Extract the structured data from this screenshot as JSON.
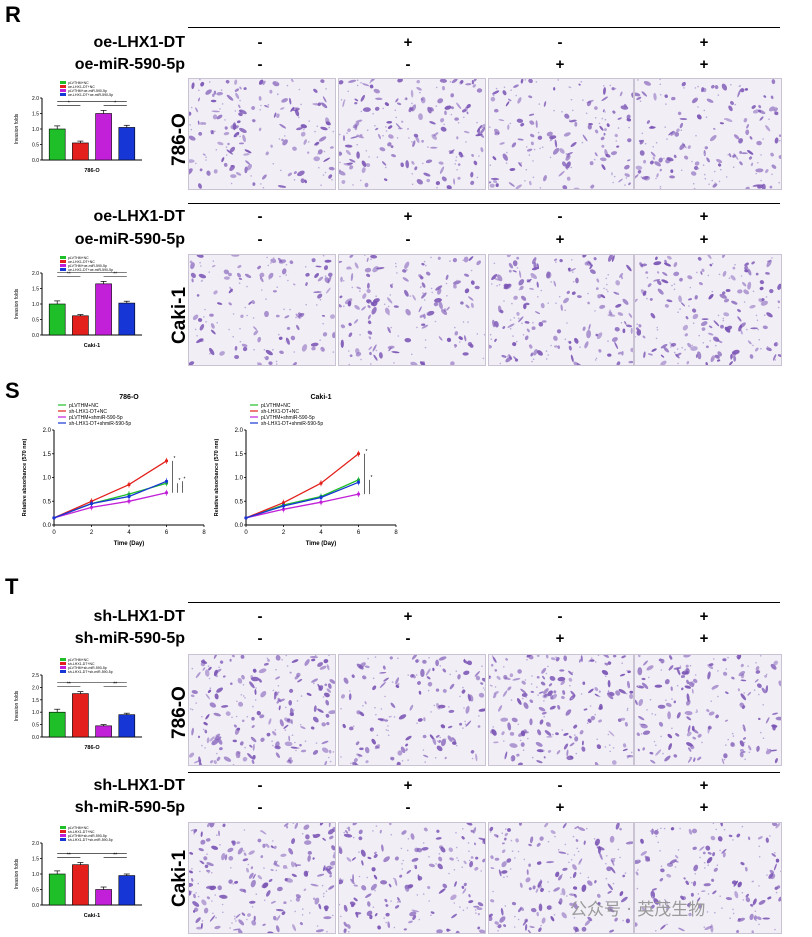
{
  "panels": {
    "R": {
      "letter": "R",
      "rows": [
        {
          "treat1": "oe-LHX1-DT",
          "treat2": "oe-miR-590-5p",
          "signs1": [
            "-",
            "+",
            "-",
            "+"
          ],
          "signs2": [
            "-",
            "-",
            "+",
            "+"
          ],
          "cell_line": "786-O"
        },
        {
          "treat1": "oe-LHX1-DT",
          "treat2": "oe-miR-590-5p",
          "signs1": [
            "-",
            "+",
            "-",
            "+"
          ],
          "signs2": [
            "-",
            "-",
            "+",
            "+"
          ],
          "cell_line": "Caki-1"
        }
      ]
    },
    "S": {
      "letter": "S"
    },
    "T": {
      "letter": "T",
      "rows": [
        {
          "treat1": "sh-LHX1-DT",
          "treat2": "sh-miR-590-5p",
          "signs1": [
            "-",
            "+",
            "-",
            "+"
          ],
          "signs2": [
            "-",
            "-",
            "+",
            "+"
          ],
          "cell_line": "786-O"
        },
        {
          "treat1": "sh-LHX1-DT",
          "treat2": "sh-miR-590-5p",
          "signs1": [
            "-",
            "+",
            "-",
            "+"
          ],
          "signs2": [
            "-",
            "-",
            "+",
            "+"
          ],
          "cell_line": "Caki-1"
        }
      ]
    }
  },
  "watermark": "公众号 · 英茂生物",
  "colors": {
    "green": "#1fbf2a",
    "red": "#e3201b",
    "magenta": "#c21fd8",
    "blue": "#1636d6",
    "stain": "#7a54b4"
  },
  "chart_data": [
    {
      "id": "R1",
      "type": "bar",
      "categories": [
        "pLVTHM+NC",
        "oe-LHX1-DT+NC",
        "pLVTHM+oe-miR-590-5p",
        "oe-LHX1-DT+oe-miR-590-5p"
      ],
      "values": [
        1.0,
        0.55,
        1.5,
        1.05
      ],
      "errors": [
        0.1,
        0.06,
        0.1,
        0.07
      ],
      "ylabel": "Invasion folds",
      "xlabel": "786-O",
      "ylim": [
        0,
        2.0
      ],
      "yticks": [
        "0.0",
        "0.5",
        "1.0",
        "1.5",
        "2.0"
      ],
      "sig": [
        "*",
        "*"
      ]
    },
    {
      "id": "R2",
      "type": "bar",
      "categories": [
        "pLVTHM+NC",
        "oe-LHX1-DT+NC",
        "pLVTHM+oe-miR-590-5p",
        "oe-LHX1-DT+oe-miR-590-5p"
      ],
      "values": [
        1.0,
        0.62,
        1.65,
        1.03
      ],
      "errors": [
        0.1,
        0.04,
        0.08,
        0.06
      ],
      "ylabel": "Invasion folds",
      "xlabel": "Caki-1",
      "ylim": [
        0,
        2.0
      ],
      "yticks": [
        "0.0",
        "0.5",
        "1.0",
        "1.5",
        "2.0"
      ],
      "sig": [
        "**",
        "**"
      ]
    },
    {
      "id": "S1",
      "type": "line",
      "title": "786-O",
      "x": [
        0,
        2,
        4,
        6
      ],
      "xticks": [
        "0",
        "2",
        "4",
        "6",
        "8"
      ],
      "xlim": [
        0,
        8
      ],
      "ylim": [
        0,
        2.0
      ],
      "yticks": [
        "0.0",
        "0.5",
        "1.0",
        "1.5",
        "2.0"
      ],
      "xlabel": "Time (Day)",
      "ylabel": "Relative absorbance (570 nm)",
      "series": [
        {
          "name": "pLVTHM+NC",
          "values": [
            0.15,
            0.45,
            0.65,
            0.88
          ]
        },
        {
          "name": "sh-LHX1-DT+NC",
          "values": [
            0.15,
            0.5,
            0.85,
            1.35
          ]
        },
        {
          "name": "pLVTHM+shmiR-590-5p",
          "values": [
            0.15,
            0.37,
            0.5,
            0.68
          ]
        },
        {
          "name": "sh-LHX1-DT+shmiR-590-5p",
          "values": [
            0.15,
            0.45,
            0.6,
            0.92
          ]
        }
      ],
      "sig": [
        "*",
        "*",
        "*"
      ]
    },
    {
      "id": "S2",
      "type": "line",
      "title": "Caki-1",
      "x": [
        0,
        2,
        4,
        6
      ],
      "xticks": [
        "0",
        "2",
        "4",
        "6",
        "8"
      ],
      "xlim": [
        0,
        8
      ],
      "ylim": [
        0,
        2.0
      ],
      "yticks": [
        "0.0",
        "0.5",
        "1.0",
        "1.5",
        "2.0"
      ],
      "xlabel": "Time (Day)",
      "ylabel": "Relative absorbance (570 nm)",
      "series": [
        {
          "name": "pLVTHM+NC",
          "values": [
            0.15,
            0.42,
            0.6,
            0.95
          ]
        },
        {
          "name": "sh-LHX1-DT+NC",
          "values": [
            0.15,
            0.47,
            0.88,
            1.5
          ]
        },
        {
          "name": "pLVTHM+shmiR-590-5p",
          "values": [
            0.15,
            0.33,
            0.48,
            0.65
          ]
        },
        {
          "name": "sh-LHX1-DT+shmiR-590-5p",
          "values": [
            0.15,
            0.4,
            0.58,
            0.9
          ]
        }
      ],
      "sig": [
        "*",
        "*"
      ]
    },
    {
      "id": "T1",
      "type": "bar",
      "categories": [
        "pLVTHM+NC",
        "sh-LHX1-DT+NC",
        "pLVTHM+sh-miR-590-5p",
        "sh-LHX1-DT+sh-miR-590-5p"
      ],
      "values": [
        1.0,
        1.75,
        0.45,
        0.9
      ],
      "errors": [
        0.12,
        0.08,
        0.05,
        0.06
      ],
      "ylabel": "Invasion folds",
      "xlabel": "786-O",
      "ylim": [
        0,
        2.5
      ],
      "yticks": [
        "0.0",
        "0.5",
        "1.0",
        "1.5",
        "2.0",
        "2.5"
      ],
      "sig": [
        "**",
        "**"
      ]
    },
    {
      "id": "T2",
      "type": "bar",
      "categories": [
        "pLVTHM+NC",
        "sh-LHX1-DT+NC",
        "pLVTHM+sh-miR-590-5p",
        "sh-LHX1-DT+sh-miR-590-5p"
      ],
      "values": [
        1.0,
        1.3,
        0.5,
        0.95
      ],
      "errors": [
        0.1,
        0.07,
        0.08,
        0.05
      ],
      "ylabel": "Invasion folds",
      "xlabel": "Caki-1",
      "ylim": [
        0,
        2.0
      ],
      "yticks": [
        "0.0",
        "0.5",
        "1.0",
        "1.5",
        "2.0"
      ],
      "sig": [
        "**",
        "**"
      ]
    }
  ]
}
